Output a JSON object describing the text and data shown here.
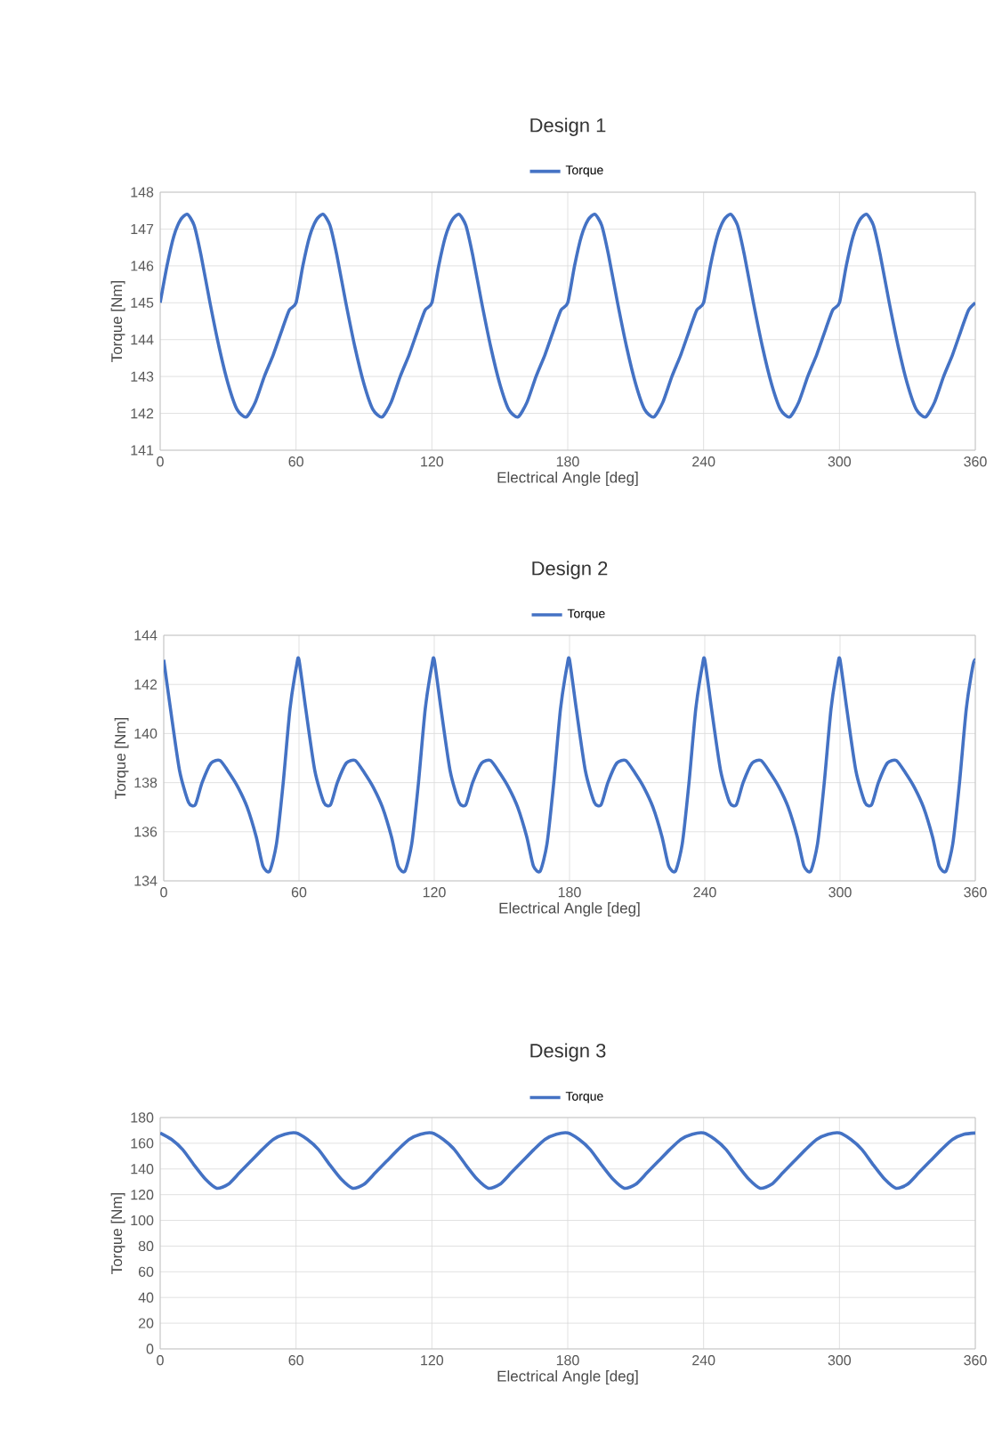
{
  "chart_data": [
    {
      "type": "line",
      "title": "Design 1",
      "xlabel": "Electrical Angle [deg]",
      "ylabel": "Torque [Nm]",
      "grid": true,
      "legend": "top",
      "xlim": [
        0,
        360
      ],
      "xticks": [
        0,
        60,
        120,
        180,
        240,
        300,
        360
      ],
      "ylim": [
        141,
        148
      ],
      "yticks": [
        141,
        142,
        143,
        144,
        145,
        146,
        147,
        148
      ],
      "x": [
        0,
        3,
        6,
        9,
        12,
        15,
        18,
        22,
        26,
        30,
        34,
        38,
        42,
        46,
        50,
        54,
        57,
        60,
        63,
        66,
        69,
        72,
        75,
        78,
        82,
        86,
        90,
        94,
        98,
        102,
        106,
        110,
        114,
        117,
        120,
        123,
        126,
        129,
        132,
        135,
        138,
        142,
        146,
        150,
        154,
        158,
        162,
        166,
        170,
        174,
        177,
        180,
        183,
        186,
        189,
        192,
        195,
        198,
        202,
        206,
        210,
        214,
        218,
        222,
        226,
        230,
        234,
        237,
        240,
        243,
        246,
        249,
        252,
        255,
        258,
        262,
        266,
        270,
        274,
        278,
        282,
        286,
        290,
        294,
        297,
        300,
        303,
        306,
        309,
        312,
        315,
        318,
        322,
        326,
        330,
        334,
        338,
        342,
        346,
        350,
        354,
        357,
        360
      ],
      "series": [
        {
          "name": "Torque",
          "color": "#4472c4",
          "values": [
            145,
            146,
            146.8,
            147.25,
            147.4,
            147.1,
            146.3,
            145,
            143.8,
            142.8,
            142.1,
            141.9,
            142.3,
            143,
            143.6,
            144.3,
            144.8,
            145,
            146,
            146.8,
            147.25,
            147.4,
            147.1,
            146.3,
            145,
            143.8,
            142.8,
            142.1,
            141.9,
            142.3,
            143,
            143.6,
            144.3,
            144.8,
            145,
            146,
            146.8,
            147.25,
            147.4,
            147.1,
            146.3,
            145,
            143.8,
            142.8,
            142.1,
            141.9,
            142.3,
            143,
            143.6,
            144.3,
            144.8,
            145,
            146,
            146.8,
            147.25,
            147.4,
            147.1,
            146.3,
            145,
            143.8,
            142.8,
            142.1,
            141.9,
            142.3,
            143,
            143.6,
            144.3,
            144.8,
            145,
            146,
            146.8,
            147.25,
            147.4,
            147.1,
            146.3,
            145,
            143.8,
            142.8,
            142.1,
            141.9,
            142.3,
            143,
            143.6,
            144.3,
            144.8,
            145,
            146,
            146.8,
            147.25,
            147.4,
            147.1,
            146.3,
            145,
            143.8,
            142.8,
            142.1,
            141.9,
            142.3,
            143,
            143.6,
            144.3,
            144.8,
            145
          ]
        }
      ]
    },
    {
      "type": "line",
      "title": "Design 2",
      "xlabel": "Electrical Angle [deg]",
      "ylabel": "Torque [Nm]",
      "grid": true,
      "legend": "top",
      "xlim": [
        0,
        360
      ],
      "xticks": [
        0,
        60,
        120,
        180,
        240,
        300,
        360
      ],
      "ylim": [
        134,
        144
      ],
      "yticks": [
        134,
        136,
        138,
        140,
        142,
        144
      ],
      "x": [
        0,
        3,
        7,
        11,
        14,
        17,
        21,
        25,
        29,
        33,
        37,
        41,
        44,
        47,
        50,
        53,
        56,
        59,
        60,
        63,
        67,
        71,
        74,
        77,
        81,
        85,
        89,
        93,
        97,
        101,
        104,
        107,
        110,
        113,
        116,
        119,
        120,
        123,
        127,
        131,
        134,
        137,
        141,
        145,
        149,
        153,
        157,
        161,
        164,
        167,
        170,
        173,
        176,
        179,
        180,
        183,
        187,
        191,
        194,
        197,
        201,
        205,
        209,
        213,
        217,
        221,
        224,
        227,
        230,
        233,
        236,
        239,
        240,
        243,
        247,
        251,
        254,
        257,
        261,
        265,
        269,
        273,
        277,
        281,
        284,
        287,
        290,
        293,
        296,
        299,
        300,
        303,
        307,
        311,
        314,
        317,
        321,
        325,
        329,
        333,
        337,
        341,
        344,
        347,
        350,
        353,
        356,
        359,
        360
      ],
      "series": [
        {
          "name": "Torque",
          "color": "#4472c4",
          "values": [
            143,
            141,
            138.5,
            137.2,
            137.1,
            138,
            138.8,
            138.9,
            138.4,
            137.8,
            137,
            135.8,
            134.6,
            134.4,
            135.5,
            138,
            141,
            142.8,
            143,
            141,
            138.5,
            137.2,
            137.1,
            138,
            138.8,
            138.9,
            138.4,
            137.8,
            137,
            135.8,
            134.6,
            134.4,
            135.5,
            138,
            141,
            142.8,
            143,
            141,
            138.5,
            137.2,
            137.1,
            138,
            138.8,
            138.9,
            138.4,
            137.8,
            137,
            135.8,
            134.6,
            134.4,
            135.5,
            138,
            141,
            142.8,
            143,
            141,
            138.5,
            137.2,
            137.1,
            138,
            138.8,
            138.9,
            138.4,
            137.8,
            137,
            135.8,
            134.6,
            134.4,
            135.5,
            138,
            141,
            142.8,
            143,
            141,
            138.5,
            137.2,
            137.1,
            138,
            138.8,
            138.9,
            138.4,
            137.8,
            137,
            135.8,
            134.6,
            134.4,
            135.5,
            138,
            141,
            142.8,
            143,
            141,
            138.5,
            137.2,
            137.1,
            138,
            138.8,
            138.9,
            138.4,
            137.8,
            137,
            135.8,
            134.6,
            134.4,
            135.5,
            138,
            141,
            142.8,
            143
          ]
        }
      ]
    },
    {
      "type": "line",
      "title": "Design 3",
      "xlabel": "Electrical Angle [deg]",
      "ylabel": "Torque [Nm]",
      "grid": true,
      "legend": "top",
      "xlim": [
        0,
        360
      ],
      "xticks": [
        0,
        60,
        120,
        180,
        240,
        300,
        360
      ],
      "ylim": [
        0,
        180
      ],
      "yticks": [
        0,
        20,
        40,
        60,
        80,
        100,
        120,
        140,
        160,
        180
      ],
      "x": [
        0,
        5,
        10,
        15,
        20,
        25,
        30,
        35,
        40,
        45,
        50,
        55,
        60,
        65,
        70,
        75,
        80,
        85,
        90,
        95,
        100,
        105,
        110,
        115,
        120,
        125,
        130,
        135,
        140,
        145,
        150,
        155,
        160,
        165,
        170,
        175,
        180,
        185,
        190,
        195,
        200,
        205,
        210,
        215,
        220,
        225,
        230,
        235,
        240,
        245,
        250,
        255,
        260,
        265,
        270,
        275,
        280,
        285,
        290,
        295,
        300,
        305,
        310,
        315,
        320,
        325,
        330,
        335,
        340,
        345,
        350,
        355,
        360
      ],
      "series": [
        {
          "name": "Torque",
          "color": "#4472c4",
          "values": [
            168,
            163,
            155,
            143,
            132,
            125,
            128,
            137,
            146,
            155,
            163,
            167,
            168,
            163,
            155,
            143,
            132,
            125,
            128,
            137,
            146,
            155,
            163,
            167,
            168,
            163,
            155,
            143,
            132,
            125,
            128,
            137,
            146,
            155,
            163,
            167,
            168,
            163,
            155,
            143,
            132,
            125,
            128,
            137,
            146,
            155,
            163,
            167,
            168,
            163,
            155,
            143,
            132,
            125,
            128,
            137,
            146,
            155,
            163,
            167,
            168,
            163,
            155,
            143,
            132,
            125,
            128,
            137,
            146,
            155,
            163,
            167,
            168
          ]
        }
      ]
    }
  ]
}
